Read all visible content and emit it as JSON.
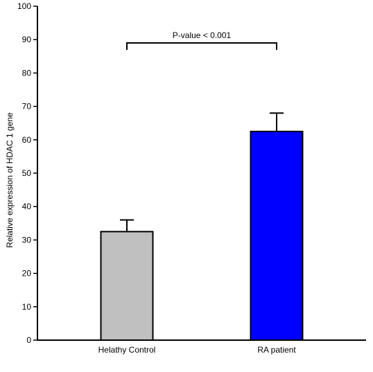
{
  "chart_data": {
    "type": "bar",
    "title": "",
    "xlabel": "",
    "ylabel": "Relative expression of HDAC 1 gene",
    "ylim": [
      0,
      100
    ],
    "yticks": [
      0,
      10,
      20,
      30,
      40,
      50,
      60,
      70,
      80,
      90,
      100
    ],
    "categories": [
      "Helathy Control",
      "RA patient"
    ],
    "values": [
      32.5,
      62.5
    ],
    "error_upper": [
      3.5,
      5.5
    ],
    "bar_colors": [
      "#c0c0c0",
      "#0000ff"
    ],
    "grid": false,
    "legend": "none",
    "annotation": {
      "text": "P-value < 0.001",
      "y": 89
    }
  }
}
